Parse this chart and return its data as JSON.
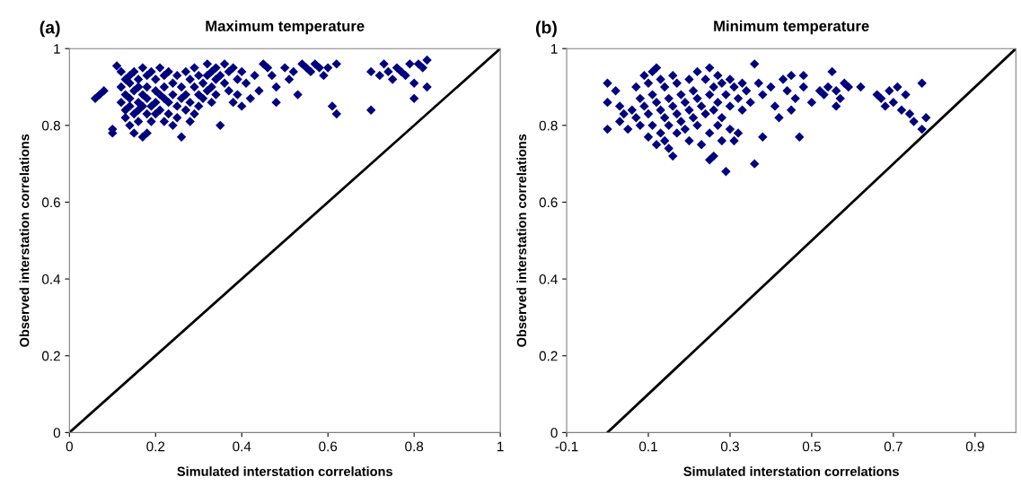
{
  "chart_data": [
    {
      "type": "scatter",
      "title": "Maximum temperature",
      "xlabel": "Simulated interstation correlations",
      "ylabel": "Observed interstation correlations",
      "annotations": [
        "(a)"
      ],
      "marker": "diamond",
      "grid": false,
      "xlim": [
        0,
        1
      ],
      "ylim": [
        0,
        1
      ],
      "xticks": [
        0,
        0.2,
        0.4,
        0.6,
        0.8,
        1
      ],
      "yticks": [
        0,
        0.2,
        0.4,
        0.6,
        0.8,
        1
      ],
      "series": [
        {
          "color": "#00007f",
          "x": [
            0.06,
            0.07,
            0.08,
            0.1,
            0.1,
            0.11,
            0.12,
            0.12,
            0.12,
            0.13,
            0.13,
            0.13,
            0.13,
            0.14,
            0.14,
            0.14,
            0.14,
            0.14,
            0.15,
            0.15,
            0.15,
            0.15,
            0.16,
            0.16,
            0.16,
            0.16,
            0.16,
            0.17,
            0.17,
            0.17,
            0.17,
            0.18,
            0.18,
            0.18,
            0.18,
            0.18,
            0.19,
            0.19,
            0.19,
            0.2,
            0.2,
            0.2,
            0.2,
            0.21,
            0.21,
            0.21,
            0.22,
            0.22,
            0.22,
            0.22,
            0.23,
            0.23,
            0.23,
            0.24,
            0.24,
            0.24,
            0.25,
            0.25,
            0.25,
            0.26,
            0.26,
            0.26,
            0.27,
            0.27,
            0.27,
            0.28,
            0.28,
            0.28,
            0.29,
            0.29,
            0.29,
            0.3,
            0.3,
            0.3,
            0.31,
            0.31,
            0.32,
            0.32,
            0.32,
            0.33,
            0.33,
            0.33,
            0.34,
            0.34,
            0.34,
            0.35,
            0.35,
            0.36,
            0.36,
            0.37,
            0.37,
            0.38,
            0.38,
            0.39,
            0.39,
            0.4,
            0.4,
            0.41,
            0.42,
            0.43,
            0.44,
            0.45,
            0.46,
            0.47,
            0.48,
            0.48,
            0.5,
            0.51,
            0.52,
            0.53,
            0.54,
            0.55,
            0.56,
            0.57,
            0.58,
            0.59,
            0.6,
            0.61,
            0.62,
            0.62,
            0.7,
            0.7,
            0.72,
            0.73,
            0.74,
            0.75,
            0.76,
            0.77,
            0.78,
            0.79,
            0.8,
            0.8,
            0.81,
            0.82,
            0.83,
            0.83
          ],
          "values": [
            0.87,
            0.88,
            0.89,
            0.78,
            0.79,
            0.955,
            0.94,
            0.9,
            0.86,
            0.92,
            0.88,
            0.84,
            0.82,
            0.93,
            0.91,
            0.87,
            0.85,
            0.8,
            0.94,
            0.89,
            0.83,
            0.78,
            0.92,
            0.9,
            0.86,
            0.84,
            0.81,
            0.95,
            0.88,
            0.85,
            0.77,
            0.93,
            0.9,
            0.87,
            0.83,
            0.78,
            0.94,
            0.85,
            0.81,
            0.92,
            0.89,
            0.86,
            0.83,
            0.95,
            0.88,
            0.84,
            0.93,
            0.9,
            0.87,
            0.81,
            0.94,
            0.86,
            0.83,
            0.91,
            0.88,
            0.8,
            0.93,
            0.85,
            0.82,
            0.9,
            0.87,
            0.77,
            0.94,
            0.88,
            0.84,
            0.92,
            0.86,
            0.81,
            0.95,
            0.9,
            0.83,
            0.93,
            0.88,
            0.85,
            0.91,
            0.87,
            0.96,
            0.93,
            0.89,
            0.94,
            0.9,
            0.86,
            0.95,
            0.92,
            0.88,
            0.93,
            0.8,
            0.96,
            0.91,
            0.94,
            0.89,
            0.95,
            0.86,
            0.92,
            0.88,
            0.94,
            0.85,
            0.91,
            0.87,
            0.93,
            0.89,
            0.96,
            0.95,
            0.93,
            0.9,
            0.86,
            0.95,
            0.92,
            0.94,
            0.88,
            0.96,
            0.95,
            0.94,
            0.96,
            0.95,
            0.93,
            0.95,
            0.85,
            0.83,
            0.96,
            0.84,
            0.94,
            0.93,
            0.96,
            0.94,
            0.92,
            0.95,
            0.94,
            0.93,
            0.96,
            0.91,
            0.87,
            0.96,
            0.95,
            0.9,
            0.97
          ]
        },
        {
          "type": "line",
          "color": "#000000",
          "marker": "none",
          "x": [
            0,
            1
          ],
          "values": [
            0,
            1
          ]
        }
      ]
    },
    {
      "type": "scatter",
      "title": "Minimum temperature",
      "xlabel": "Simulated interstation correlations",
      "ylabel": "Observed interstation correlations",
      "annotations": [
        "(b)"
      ],
      "marker": "diamond",
      "grid": false,
      "xlim": [
        -0.1,
        1.0
      ],
      "ylim": [
        0,
        1
      ],
      "xticks": [
        -0.1,
        0.1,
        0.3,
        0.5,
        0.7,
        0.9
      ],
      "yticks": [
        0,
        0.2,
        0.4,
        0.6,
        0.8,
        1
      ],
      "series": [
        {
          "color": "#00007f",
          "x": [
            0.0,
            0.0,
            0.0,
            0.02,
            0.03,
            0.03,
            0.04,
            0.05,
            0.06,
            0.07,
            0.07,
            0.08,
            0.08,
            0.09,
            0.09,
            0.1,
            0.1,
            0.1,
            0.11,
            0.11,
            0.11,
            0.12,
            0.12,
            0.12,
            0.13,
            0.13,
            0.13,
            0.14,
            0.14,
            0.14,
            0.15,
            0.15,
            0.15,
            0.16,
            0.16,
            0.16,
            0.17,
            0.17,
            0.17,
            0.18,
            0.18,
            0.19,
            0.19,
            0.2,
            0.2,
            0.2,
            0.21,
            0.21,
            0.22,
            0.22,
            0.22,
            0.23,
            0.23,
            0.24,
            0.24,
            0.25,
            0.25,
            0.25,
            0.25,
            0.26,
            0.26,
            0.26,
            0.27,
            0.27,
            0.27,
            0.28,
            0.28,
            0.28,
            0.29,
            0.29,
            0.3,
            0.3,
            0.3,
            0.31,
            0.31,
            0.32,
            0.32,
            0.33,
            0.33,
            0.34,
            0.35,
            0.36,
            0.36,
            0.37,
            0.38,
            0.38,
            0.4,
            0.41,
            0.42,
            0.43,
            0.44,
            0.45,
            0.45,
            0.46,
            0.47,
            0.48,
            0.48,
            0.5,
            0.52,
            0.53,
            0.54,
            0.55,
            0.56,
            0.56,
            0.57,
            0.58,
            0.59,
            0.62,
            0.66,
            0.67,
            0.68,
            0.69,
            0.7,
            0.71,
            0.72,
            0.73,
            0.74,
            0.75,
            0.77,
            0.77,
            0.78
          ],
          "values": [
            0.91,
            0.86,
            0.79,
            0.89,
            0.85,
            0.81,
            0.83,
            0.79,
            0.84,
            0.9,
            0.82,
            0.87,
            0.8,
            0.93,
            0.85,
            0.91,
            0.83,
            0.77,
            0.94,
            0.88,
            0.8,
            0.95,
            0.86,
            0.75,
            0.92,
            0.84,
            0.78,
            0.9,
            0.82,
            0.76,
            0.87,
            0.8,
            0.74,
            0.93,
            0.85,
            0.72,
            0.91,
            0.83,
            0.78,
            0.88,
            0.81,
            0.86,
            0.79,
            0.92,
            0.84,
            0.76,
            0.89,
            0.82,
            0.94,
            0.87,
            0.8,
            0.85,
            0.75,
            0.92,
            0.83,
            0.95,
            0.88,
            0.78,
            0.71,
            0.9,
            0.84,
            0.72,
            0.93,
            0.86,
            0.8,
            0.91,
            0.82,
            0.76,
            0.88,
            0.68,
            0.92,
            0.85,
            0.79,
            0.9,
            0.76,
            0.87,
            0.78,
            0.91,
            0.84,
            0.89,
            0.86,
            0.96,
            0.7,
            0.91,
            0.88,
            0.77,
            0.9,
            0.85,
            0.82,
            0.92,
            0.89,
            0.93,
            0.84,
            0.87,
            0.77,
            0.93,
            0.9,
            0.86,
            0.89,
            0.88,
            0.9,
            0.94,
            0.89,
            0.85,
            0.87,
            0.91,
            0.9,
            0.9,
            0.88,
            0.87,
            0.85,
            0.89,
            0.86,
            0.9,
            0.84,
            0.88,
            0.83,
            0.81,
            0.91,
            0.79,
            0.82
          ]
        },
        {
          "type": "line",
          "color": "#000000",
          "marker": "none",
          "x": [
            0,
            1
          ],
          "values": [
            0,
            1
          ]
        }
      ]
    }
  ]
}
